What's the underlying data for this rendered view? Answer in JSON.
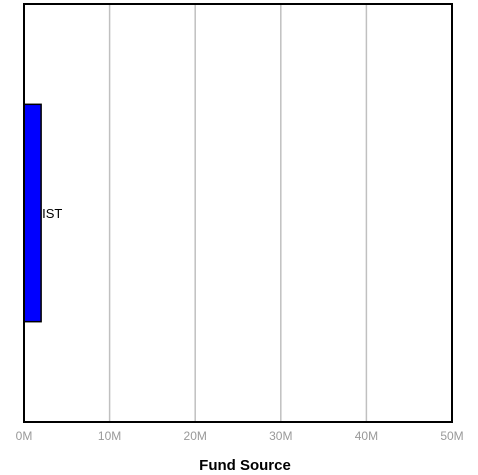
{
  "chart_data": {
    "type": "bar",
    "orientation": "horizontal",
    "categories": [
      "IST"
    ],
    "values": [
      2000000
    ],
    "xlabel": "Fund Source",
    "ylabel": "",
    "xlim": [
      0,
      50000000
    ],
    "xticks": [
      0,
      10000000,
      20000000,
      30000000,
      40000000,
      50000000
    ],
    "xtick_labels": [
      "0M",
      "10M",
      "20M",
      "30M",
      "40M",
      "50M"
    ],
    "grid": "vertical",
    "legend": "none",
    "colors": {
      "bar_fill": "#0000ff",
      "bar_stroke": "#000000",
      "grid": "#c0c0c0",
      "frame": "#000000",
      "tick_text": "#999999"
    }
  }
}
